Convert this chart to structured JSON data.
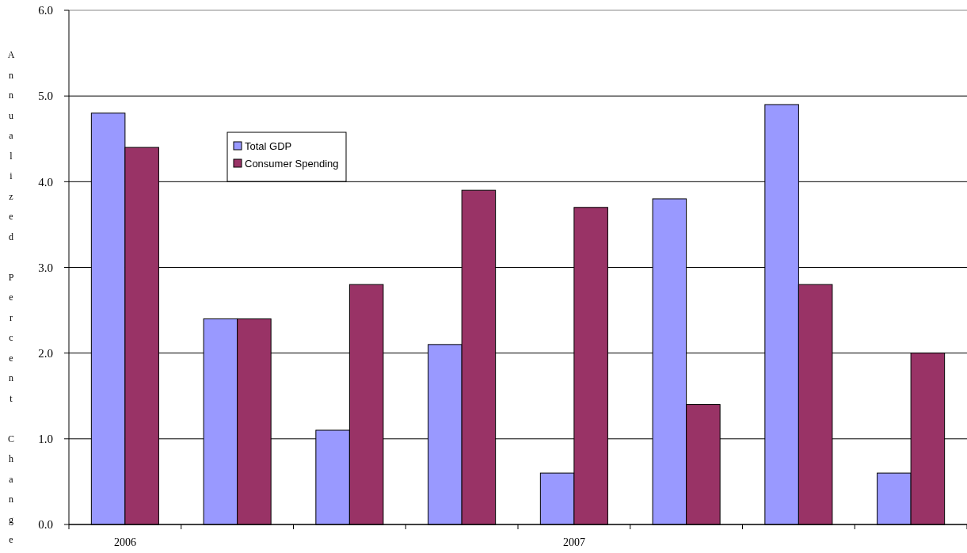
{
  "chart_data": {
    "type": "bar",
    "ylabel": "Annualized Percent Change",
    "categories": [
      "2006",
      null,
      null,
      null,
      "2007",
      null,
      null,
      null
    ],
    "series": [
      {
        "name": "Total GDP",
        "color": "#9999ff",
        "values": [
          4.8,
          2.4,
          1.1,
          2.1,
          0.6,
          3.8,
          4.9,
          0.6
        ]
      },
      {
        "name": "Consumer Spending",
        "color": "#993366",
        "values": [
          4.4,
          2.4,
          2.8,
          3.9,
          3.7,
          1.4,
          2.8,
          2.0
        ]
      }
    ],
    "ylim": [
      0,
      6
    ],
    "yticks": [
      {
        "value": 0,
        "label": "0.0"
      },
      {
        "value": 1,
        "label": "1.0"
      },
      {
        "value": 2,
        "label": "2.0"
      },
      {
        "value": 3,
        "label": "3.0"
      },
      {
        "value": 4,
        "label": "4.0"
      },
      {
        "value": 5,
        "label": "5.0"
      },
      {
        "value": 6,
        "label": "6.0"
      }
    ],
    "grid": "y",
    "legend": "top left"
  }
}
